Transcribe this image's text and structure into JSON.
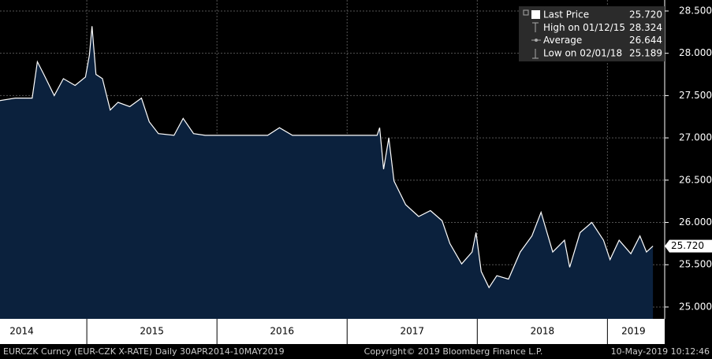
{
  "chart_data": {
    "type": "area",
    "series": [
      {
        "name": "Last Price",
        "color": "#ffffff",
        "fill": "#0b213d",
        "x": [
          2014.33,
          2014.45,
          2014.58,
          2014.62,
          2014.67,
          2014.75,
          2014.82,
          2014.91,
          2014.99,
          2015.02,
          2015.04,
          2015.07,
          2015.12,
          2015.18,
          2015.24,
          2015.33,
          2015.42,
          2015.48,
          2015.55,
          2015.67,
          2015.74,
          2015.82,
          2015.91,
          2016.15,
          2016.39,
          2016.48,
          2016.58,
          2016.88,
          2017.23,
          2017.25,
          2017.28,
          2017.32,
          2017.36,
          2017.45,
          2017.55,
          2017.64,
          2017.73,
          2017.79,
          2017.88,
          2017.96,
          2017.99,
          2018.03,
          2018.09,
          2018.15,
          2018.24,
          2018.33,
          2018.42,
          2018.49,
          2018.58,
          2018.67,
          2018.71,
          2018.79,
          2018.88,
          2018.97,
          2019.02,
          2019.09,
          2019.18,
          2019.25,
          2019.3,
          2019.35
        ],
        "values": [
          27.44,
          27.47,
          27.47,
          27.9,
          27.75,
          27.5,
          27.7,
          27.62,
          27.72,
          27.98,
          28.32,
          27.75,
          27.7,
          27.33,
          27.42,
          27.37,
          27.47,
          27.19,
          27.05,
          27.03,
          27.23,
          27.05,
          27.03,
          27.03,
          27.03,
          27.12,
          27.03,
          27.03,
          27.03,
          27.12,
          26.63,
          27.0,
          26.49,
          26.21,
          26.07,
          26.14,
          26.02,
          25.75,
          25.51,
          25.65,
          25.88,
          25.42,
          25.23,
          25.37,
          25.33,
          25.65,
          25.84,
          26.12,
          25.65,
          25.79,
          25.47,
          25.88,
          26.0,
          25.79,
          25.56,
          25.79,
          25.63,
          25.84,
          25.65,
          25.72
        ]
      }
    ],
    "xlim": [
      2014.333,
      2019.44
    ],
    "ylim": [
      24.86,
      28.63
    ],
    "yticks": [
      {
        "value": 25,
        "label": "25.000"
      },
      {
        "value": 25.5,
        "label": "25.500"
      },
      {
        "value": 26,
        "label": "26.000"
      },
      {
        "value": 26.5,
        "label": "26.500"
      },
      {
        "value": 27,
        "label": "27.000"
      },
      {
        "value": 27.5,
        "label": "27.500"
      },
      {
        "value": 28,
        "label": "28.000"
      },
      {
        "value": 28.5,
        "label": "28.500"
      }
    ],
    "xticks": [
      2015,
      2016,
      2017,
      2018,
      2019
    ],
    "xtick_labels": [
      {
        "value": 2014.5,
        "label": "2014"
      },
      {
        "value": 2015.5,
        "label": "2015"
      },
      {
        "value": 2016.5,
        "label": "2016"
      },
      {
        "value": 2017.5,
        "label": "2017"
      },
      {
        "value": 2018.5,
        "label": "2018"
      },
      {
        "value": 2019.2,
        "label": "2019"
      }
    ],
    "grid": true,
    "last_value": {
      "value": 25.72,
      "label": "25.720"
    },
    "legend_rows": [
      {
        "label": "Last Price",
        "value": "25.720"
      },
      {
        "label": "High on 01/12/15",
        "value": "28.324"
      },
      {
        "label": "Average",
        "value": "26.644"
      },
      {
        "label": "Low on 02/01/18",
        "value": "25.189"
      }
    ],
    "footer": {
      "left": "EURCZK Curncy (EUR-CZK X-RATE)  Daily 30APR2014-10MAY2019",
      "center": "Copyright© 2019 Bloomberg Finance L.P.",
      "right": "10-May-2019 10:12:46"
    }
  }
}
